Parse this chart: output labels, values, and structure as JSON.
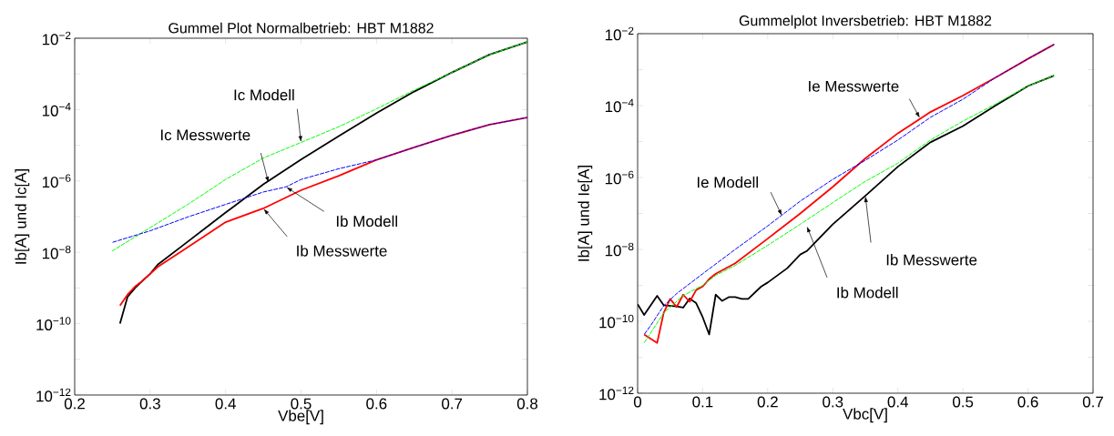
{
  "chart_data": [
    {
      "type": "line",
      "title": "Gummel Plot Normalbetrieb: HBT M1882",
      "xlabel": "Vbe[V]",
      "ylabel": "Ib[A] und Ic[A]",
      "log": "y",
      "grid": false,
      "legend": false,
      "marker": "none",
      "xlim": [
        0.2,
        0.8
      ],
      "xticks": [
        0.2,
        0.3,
        0.4,
        0.5,
        0.6,
        0.7,
        0.8
      ],
      "ylim": [
        1e-12,
        0.01
      ],
      "yticks": [
        {
          "value": 1e-12,
          "label": "10$^{−12}$"
        },
        {
          "value": 1e-11,
          "label": null
        },
        {
          "value": 1e-10,
          "label": "10$^{−10}$"
        },
        {
          "value": 1e-09,
          "label": null
        },
        {
          "value": 1e-08,
          "label": "10$^{−8}$"
        },
        {
          "value": 1e-07,
          "label": null
        },
        {
          "value": 1e-06,
          "label": "10$^{−6}$"
        },
        {
          "value": 1e-05,
          "label": null
        },
        {
          "value": 0.0001,
          "label": "10$^{−4}$"
        },
        {
          "value": 0.001,
          "label": null
        },
        {
          "value": 0.01,
          "label": "10$^{−2}$"
        }
      ],
      "series": [
        {
          "color": "#000000",
          "line_style": "solid",
          "x": [
            0.26,
            0.27,
            0.28,
            0.29,
            0.3,
            0.31,
            0.35,
            0.4,
            0.45,
            0.5,
            0.55,
            0.6,
            0.65,
            0.7,
            0.75,
            0.8
          ],
          "values": [
            1e-10,
            5.6e-10,
            1e-09,
            1.6e-09,
            2.5e-09,
            4.5e-09,
            2e-08,
            1.3e-07,
            8e-07,
            4e-06,
            1.8e-05,
            8e-05,
            0.00032,
            0.0011,
            0.0035,
            0.0079
          ]
        },
        {
          "color": "#ff0000",
          "line_style": "solid",
          "x": [
            0.26,
            0.27,
            0.28,
            0.29,
            0.3,
            0.31,
            0.35,
            0.4,
            0.45,
            0.5,
            0.55,
            0.6,
            0.65,
            0.7,
            0.75,
            0.8
          ],
          "values": [
            3.2e-10,
            6.5e-10,
            1.1e-09,
            1.6e-09,
            2.5e-09,
            3.9e-09,
            1.4e-08,
            7e-08,
            1.7e-07,
            5.5e-07,
            1.4e-06,
            3.9e-06,
            8.7e-06,
            1.9e-05,
            3.8e-05,
            6e-05
          ]
        },
        {
          "color": "#00ff00",
          "line_style": "dashed",
          "x": [
            0.25,
            0.3,
            0.35,
            0.4,
            0.45,
            0.5,
            0.55,
            0.6,
            0.65,
            0.7,
            0.75,
            0.8
          ],
          "values": [
            1.1e-08,
            4.9e-08,
            2.2e-07,
            1.1e-06,
            4.4e-06,
            1.2e-05,
            3.3e-05,
            0.000105,
            0.00035,
            0.0011,
            0.0035,
            0.0079
          ]
        },
        {
          "color": "#0000ff",
          "line_style": "dashed",
          "x": [
            0.25,
            0.3,
            0.35,
            0.4,
            0.45,
            0.48,
            0.5,
            0.55,
            0.6,
            0.65,
            0.7,
            0.75,
            0.8
          ],
          "values": [
            1.9e-08,
            4e-08,
            9.8e-08,
            2.2e-07,
            4.9e-07,
            6.8e-07,
            1.1e-06,
            2.2e-06,
            3.9e-06,
            8.7e-06,
            1.9e-05,
            3.8e-05,
            6e-05
          ]
        }
      ],
      "annotations": [
        {
          "text": "Ic Modell",
          "x": 0.5,
          "y": 1.2e-05
        },
        {
          "text": "Ic Messwerte",
          "x": 0.457,
          "y": 8.7e-07
        },
        {
          "text": "Ib Modell",
          "x": 0.48,
          "y": 6.8e-07
        },
        {
          "text": "Ib Messwerte",
          "x": 0.45,
          "y": 1.7e-07
        }
      ]
    },
    {
      "type": "line",
      "title": "Gummelplot Inversbetrieb: HBT M1882",
      "xlabel": "Vbc[V]",
      "ylabel": "Ib[A] und Ie[A]",
      "log": "y",
      "grid": false,
      "legend": false,
      "marker": "none",
      "xlim": [
        0,
        0.7
      ],
      "xticks": [
        0,
        0.1,
        0.2,
        0.3,
        0.4,
        0.5,
        0.6,
        0.7
      ],
      "ylim": [
        1e-12,
        0.01
      ],
      "yticks": [
        {
          "value": 1e-12,
          "label": "10$^{−12}$"
        },
        {
          "value": 1e-11,
          "label": null
        },
        {
          "value": 1e-10,
          "label": "10$^{−10}$"
        },
        {
          "value": 1e-09,
          "label": null
        },
        {
          "value": 1e-08,
          "label": "10$^{−8}$"
        },
        {
          "value": 1e-07,
          "label": null
        },
        {
          "value": 1e-06,
          "label": "10$^{−6}$"
        },
        {
          "value": 1e-05,
          "label": null
        },
        {
          "value": 0.0001,
          "label": "10$^{−4}$"
        },
        {
          "value": 0.001,
          "label": null
        },
        {
          "value": 0.01,
          "label": "10$^{−2}$"
        }
      ],
      "series": [
        {
          "color": "#000000",
          "line_style": "solid",
          "x": [
            0.0,
            0.01,
            0.03,
            0.04,
            0.06,
            0.07,
            0.08,
            0.09,
            0.1,
            0.11,
            0.12,
            0.13,
            0.14,
            0.15,
            0.16,
            0.17,
            0.19,
            0.2,
            0.23,
            0.25,
            0.26,
            0.3,
            0.35,
            0.4,
            0.45,
            0.5,
            0.55,
            0.6,
            0.64
          ],
          "values": [
            3e-10,
            1.5e-10,
            5.1e-10,
            2.8e-10,
            2.6e-10,
            2.4e-10,
            4.3e-10,
            3.2e-10,
            1.3e-10,
            4.3e-11,
            5.5e-10,
            3.7e-10,
            4.7e-10,
            4.7e-10,
            4.2e-10,
            4.2e-10,
            9.3e-10,
            1.2e-09,
            3e-09,
            7.2e-09,
            9e-09,
            5e-08,
            3.1e-07,
            2e-06,
            9.5e-06,
            2.7e-05,
            0.0001,
            0.00035,
            0.00068
          ]
        },
        {
          "color": "#ff0000",
          "line_style": "solid",
          "x": [
            0.01,
            0.03,
            0.04,
            0.05,
            0.06,
            0.07,
            0.08,
            0.09,
            0.1,
            0.11,
            0.12,
            0.15,
            0.2,
            0.25,
            0.3,
            0.35,
            0.4,
            0.45,
            0.5,
            0.55,
            0.6,
            0.64
          ],
          "values": [
            4.3e-11,
            2.5e-11,
            1.7e-10,
            4.2e-10,
            2.5e-10,
            5.5e-10,
            3.5e-10,
            7.4e-10,
            9.3e-10,
            1.5e-09,
            2.1e-09,
            4.1e-09,
            2e-08,
            1e-07,
            5.5e-07,
            3.4e-06,
            1.7e-05,
            6.6e-05,
            0.00019,
            0.0006,
            0.002,
            0.005
          ]
        },
        {
          "color": "#0000ff",
          "line_style": "dashed",
          "x": [
            0.01,
            0.02,
            0.04,
            0.06,
            0.1,
            0.15,
            0.2,
            0.22,
            0.25,
            0.3,
            0.35,
            0.4,
            0.45,
            0.5,
            0.55,
            0.6,
            0.64
          ],
          "values": [
            4.3e-11,
            7.6e-11,
            2.7e-10,
            5.9e-10,
            2.1e-09,
            1e-08,
            4.5e-08,
            8.5e-08,
            2.2e-07,
            8.9e-07,
            3e-06,
            1.1e-05,
            4.7e-05,
            0.00015,
            0.0006,
            0.002,
            0.005
          ]
        },
        {
          "color": "#00ff00",
          "line_style": "dashed",
          "x": [
            0.01,
            0.04,
            0.07,
            0.1,
            0.12,
            0.15,
            0.2,
            0.25,
            0.3,
            0.35,
            0.4,
            0.45,
            0.5,
            0.55,
            0.6,
            0.64
          ],
          "values": [
            2.5e-11,
            1.7e-10,
            5.2e-10,
            1e-09,
            1.9e-09,
            3.6e-09,
            1.3e-08,
            5e-08,
            2e-07,
            7.8e-07,
            2.5e-06,
            1.1e-05,
            3.7e-05,
            0.00011,
            0.00035,
            0.00068
          ]
        }
      ],
      "annotations": [
        {
          "text": "Ie Messwerte",
          "x": 0.434,
          "y": 4.4e-05
        },
        {
          "text": "Ie Modell",
          "x": 0.222,
          "y": 8.5e-08
        },
        {
          "text": "Ib Modell",
          "x": 0.26,
          "y": 4.5e-08
        },
        {
          "text": "Ib Messwerte",
          "x": 0.35,
          "y": 3.1e-07
        }
      ]
    }
  ]
}
